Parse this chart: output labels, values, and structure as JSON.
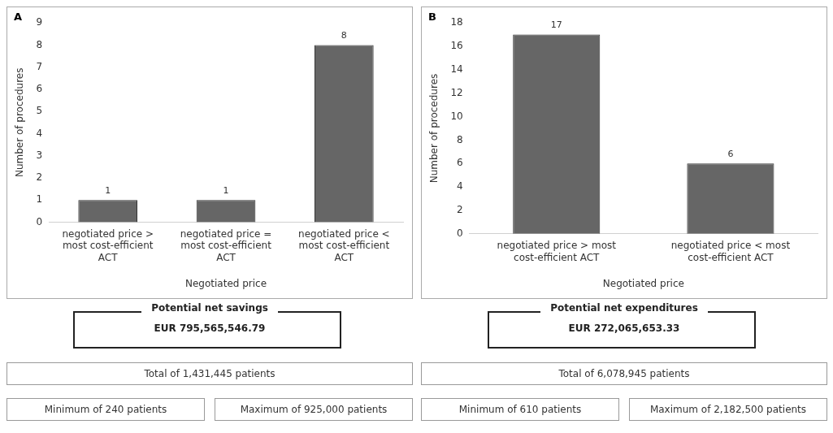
{
  "chart_data": [
    {
      "type": "bar",
      "title": "A",
      "categories": [
        "negotiated price > most cost-efficient ACT",
        "negotiated price = most cost-efficient ACT",
        "negotiated price < most cost-efficient ACT"
      ],
      "values": [
        1,
        1,
        8
      ],
      "color": "#666666",
      "xlabel": "Negotiated price",
      "ylabel": "Number of procedures",
      "ylim": [
        0,
        9
      ],
      "yticks": [
        0,
        1,
        2,
        3,
        4,
        5,
        6,
        7,
        8,
        9
      ],
      "grid": false,
      "data_labels": true,
      "annotations": [
        "Potential net savings",
        "EUR 795,565,546.79",
        "Total of 1,431,445 patients",
        "Minimum of 240 patients",
        "Maximum of 925,000 patients"
      ]
    },
    {
      "type": "bar",
      "title": "B",
      "categories": [
        "negotiated price > most cost-efficient ACT",
        "negotiated price < most cost-efficient ACT"
      ],
      "values": [
        17,
        6
      ],
      "color": "#666666",
      "xlabel": "Negotiated price",
      "ylabel": "Number of procedures",
      "ylim": [
        0,
        18
      ],
      "yticks": [
        0,
        2,
        4,
        6,
        8,
        10,
        12,
        14,
        16,
        18
      ],
      "grid": false,
      "data_labels": true,
      "annotations": [
        "Potential net expenditures",
        "EUR 272,065,653.33",
        "Total of 6,078,945 patients",
        "Minimum of 610 patients",
        "Maximum of 2,182,500 patients"
      ]
    }
  ]
}
